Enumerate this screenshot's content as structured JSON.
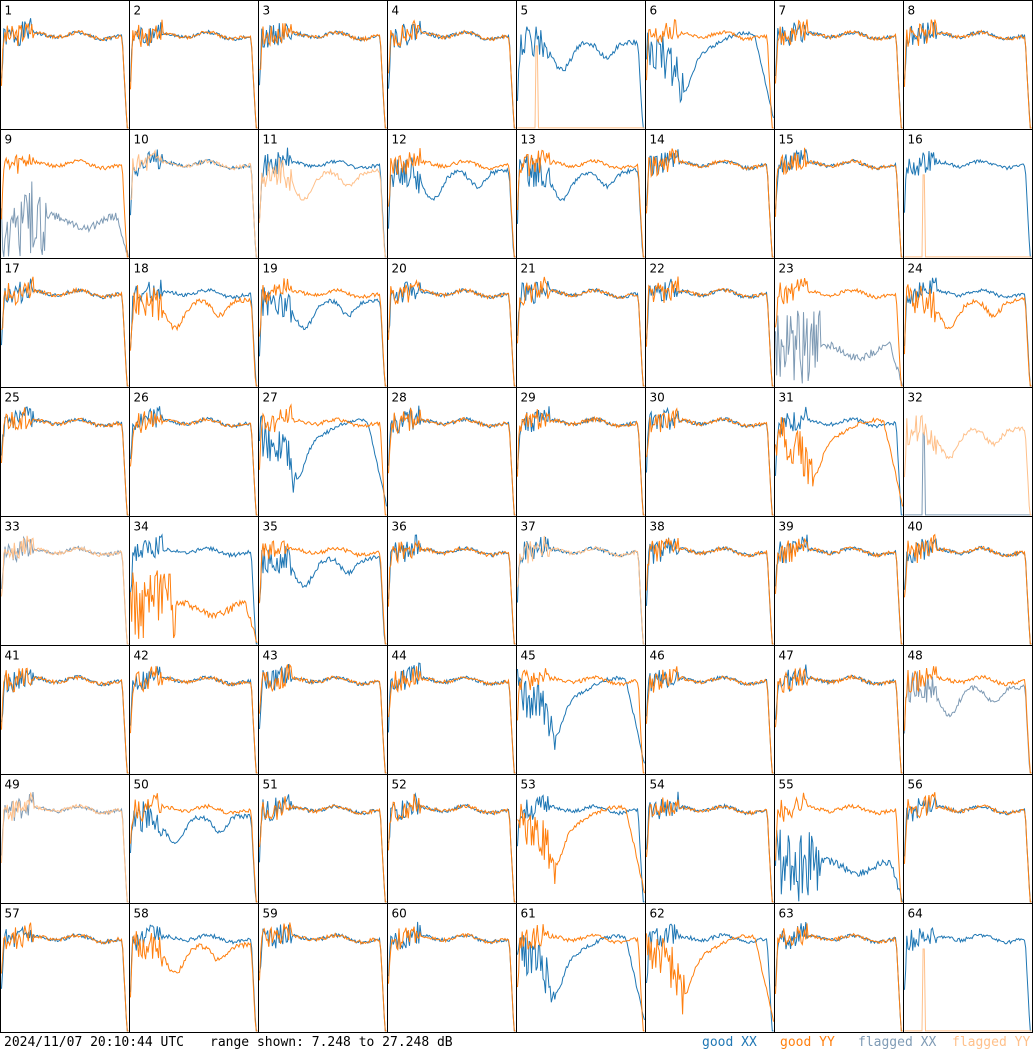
{
  "footer": {
    "timestamp": "2024/11/07 20:10:44 UTC",
    "range": "range shown: 7.248 to 27.248 dB",
    "legend_good_xx": "good XX",
    "legend_good_yy": "good YY",
    "legend_flagged_xx": "flagged XX",
    "legend_flagged_yy": "flagged YY"
  },
  "colors": {
    "good_xx": "#1f77b4",
    "good_yy": "#ff7f0e",
    "flagged_xx": "#7f9bb5",
    "flagged_yy": "#ffc08a"
  },
  "chart_data": {
    "type": "line",
    "layout": "8x8 small multiples",
    "y_range_db": [
      7.248,
      27.248
    ],
    "series_names": [
      "good XX",
      "good YY",
      "flagged XX",
      "flagged YY"
    ],
    "panels": [
      {
        "label": "1",
        "xx": "good",
        "yy": "good",
        "xx_shape": "normal",
        "yy_shape": "normal"
      },
      {
        "label": "2",
        "xx": "good",
        "yy": "good",
        "xx_shape": "normal",
        "yy_shape": "normal"
      },
      {
        "label": "3",
        "xx": "good",
        "yy": "good",
        "xx_shape": "normal",
        "yy_shape": "normal"
      },
      {
        "label": "4",
        "xx": "good",
        "yy": "good",
        "xx_shape": "normal",
        "yy_shape": "normal"
      },
      {
        "label": "5",
        "xx": "good",
        "yy": "flagged",
        "xx_shape": "dip",
        "yy_shape": "floor"
      },
      {
        "label": "6",
        "xx": "good",
        "yy": "good",
        "xx_shape": "drop",
        "yy_shape": "normal"
      },
      {
        "label": "7",
        "xx": "good",
        "yy": "good",
        "xx_shape": "normal",
        "yy_shape": "normal"
      },
      {
        "label": "8",
        "xx": "good",
        "yy": "good",
        "xx_shape": "normal",
        "yy_shape": "normal"
      },
      {
        "label": "9",
        "xx": "flagged",
        "yy": "good",
        "xx_shape": "low",
        "yy_shape": "normal"
      },
      {
        "label": "10",
        "xx": "good",
        "yy": "flagged",
        "xx_shape": "normal",
        "yy_shape": "normal"
      },
      {
        "label": "11",
        "xx": "good",
        "yy": "flagged",
        "xx_shape": "normal",
        "yy_shape": "dip"
      },
      {
        "label": "12",
        "xx": "good",
        "yy": "good",
        "xx_shape": "dip",
        "yy_shape": "normal"
      },
      {
        "label": "13",
        "xx": "good",
        "yy": "good",
        "xx_shape": "dip",
        "yy_shape": "normal"
      },
      {
        "label": "14",
        "xx": "good",
        "yy": "good",
        "xx_shape": "normal",
        "yy_shape": "normal"
      },
      {
        "label": "15",
        "xx": "good",
        "yy": "good",
        "xx_shape": "normal",
        "yy_shape": "normal"
      },
      {
        "label": "16",
        "xx": "good",
        "yy": "flagged",
        "xx_shape": "normal",
        "yy_shape": "floor"
      },
      {
        "label": "17",
        "xx": "good",
        "yy": "good",
        "xx_shape": "normal",
        "yy_shape": "normal"
      },
      {
        "label": "18",
        "xx": "good",
        "yy": "good",
        "xx_shape": "normal",
        "yy_shape": "dip"
      },
      {
        "label": "19",
        "xx": "good",
        "yy": "good",
        "xx_shape": "dip",
        "yy_shape": "normal"
      },
      {
        "label": "20",
        "xx": "good",
        "yy": "good",
        "xx_shape": "normal",
        "yy_shape": "normal"
      },
      {
        "label": "21",
        "xx": "good",
        "yy": "good",
        "xx_shape": "normal",
        "yy_shape": "normal"
      },
      {
        "label": "22",
        "xx": "good",
        "yy": "good",
        "xx_shape": "normal",
        "yy_shape": "normal"
      },
      {
        "label": "23",
        "xx": "flagged",
        "yy": "good",
        "xx_shape": "low",
        "yy_shape": "normal"
      },
      {
        "label": "24",
        "xx": "good",
        "yy": "good",
        "xx_shape": "normal",
        "yy_shape": "dip"
      },
      {
        "label": "25",
        "xx": "good",
        "yy": "good",
        "xx_shape": "normal",
        "yy_shape": "normal"
      },
      {
        "label": "26",
        "xx": "good",
        "yy": "good",
        "xx_shape": "normal",
        "yy_shape": "normal"
      },
      {
        "label": "27",
        "xx": "good",
        "yy": "good",
        "xx_shape": "drop",
        "yy_shape": "normal"
      },
      {
        "label": "28",
        "xx": "good",
        "yy": "good",
        "xx_shape": "normal",
        "yy_shape": "normal"
      },
      {
        "label": "29",
        "xx": "good",
        "yy": "good",
        "xx_shape": "normal",
        "yy_shape": "normal"
      },
      {
        "label": "30",
        "xx": "good",
        "yy": "good",
        "xx_shape": "normal",
        "yy_shape": "normal"
      },
      {
        "label": "31",
        "xx": "good",
        "yy": "good",
        "xx_shape": "normal",
        "yy_shape": "drop"
      },
      {
        "label": "32",
        "xx": "flagged",
        "yy": "flagged",
        "xx_shape": "floor",
        "yy_shape": "dip"
      },
      {
        "label": "33",
        "xx": "flagged",
        "yy": "flagged",
        "xx_shape": "normal",
        "yy_shape": "normal"
      },
      {
        "label": "34",
        "xx": "good",
        "yy": "good",
        "xx_shape": "normal",
        "yy_shape": "low"
      },
      {
        "label": "35",
        "xx": "good",
        "yy": "good",
        "xx_shape": "dip",
        "yy_shape": "normal"
      },
      {
        "label": "36",
        "xx": "good",
        "yy": "good",
        "xx_shape": "normal",
        "yy_shape": "normal"
      },
      {
        "label": "37",
        "xx": "good",
        "yy": "flagged",
        "xx_shape": "normal",
        "yy_shape": "normal"
      },
      {
        "label": "38",
        "xx": "good",
        "yy": "good",
        "xx_shape": "normal",
        "yy_shape": "normal"
      },
      {
        "label": "39",
        "xx": "good",
        "yy": "good",
        "xx_shape": "normal",
        "yy_shape": "normal"
      },
      {
        "label": "40",
        "xx": "good",
        "yy": "good",
        "xx_shape": "normal",
        "yy_shape": "normal"
      },
      {
        "label": "41",
        "xx": "good",
        "yy": "good",
        "xx_shape": "normal",
        "yy_shape": "normal"
      },
      {
        "label": "42",
        "xx": "good",
        "yy": "good",
        "xx_shape": "normal",
        "yy_shape": "normal"
      },
      {
        "label": "43",
        "xx": "good",
        "yy": "good",
        "xx_shape": "normal",
        "yy_shape": "normal"
      },
      {
        "label": "44",
        "xx": "good",
        "yy": "good",
        "xx_shape": "normal",
        "yy_shape": "normal"
      },
      {
        "label": "45",
        "xx": "good",
        "yy": "good",
        "xx_shape": "drop",
        "yy_shape": "normal"
      },
      {
        "label": "46",
        "xx": "good",
        "yy": "good",
        "xx_shape": "normal",
        "yy_shape": "normal"
      },
      {
        "label": "47",
        "xx": "good",
        "yy": "good",
        "xx_shape": "normal",
        "yy_shape": "normal"
      },
      {
        "label": "48",
        "xx": "flagged",
        "yy": "good",
        "xx_shape": "dip",
        "yy_shape": "normal"
      },
      {
        "label": "49",
        "xx": "flagged",
        "yy": "flagged",
        "xx_shape": "normal",
        "yy_shape": "normal"
      },
      {
        "label": "50",
        "xx": "good",
        "yy": "good",
        "xx_shape": "dip",
        "yy_shape": "normal"
      },
      {
        "label": "51",
        "xx": "good",
        "yy": "good",
        "xx_shape": "normal",
        "yy_shape": "normal"
      },
      {
        "label": "52",
        "xx": "good",
        "yy": "good",
        "xx_shape": "normal",
        "yy_shape": "normal"
      },
      {
        "label": "53",
        "xx": "good",
        "yy": "good",
        "xx_shape": "normal",
        "yy_shape": "drop"
      },
      {
        "label": "54",
        "xx": "good",
        "yy": "good",
        "xx_shape": "normal",
        "yy_shape": "normal"
      },
      {
        "label": "55",
        "xx": "good",
        "yy": "good",
        "xx_shape": "low",
        "yy_shape": "normal"
      },
      {
        "label": "56",
        "xx": "good",
        "yy": "good",
        "xx_shape": "normal",
        "yy_shape": "normal"
      },
      {
        "label": "57",
        "xx": "good",
        "yy": "good",
        "xx_shape": "normal",
        "yy_shape": "normal"
      },
      {
        "label": "58",
        "xx": "good",
        "yy": "good",
        "xx_shape": "normal",
        "yy_shape": "dip"
      },
      {
        "label": "59",
        "xx": "good",
        "yy": "good",
        "xx_shape": "normal",
        "yy_shape": "normal"
      },
      {
        "label": "60",
        "xx": "good",
        "yy": "good",
        "xx_shape": "normal",
        "yy_shape": "normal"
      },
      {
        "label": "61",
        "xx": "good",
        "yy": "good",
        "xx_shape": "drop",
        "yy_shape": "normal"
      },
      {
        "label": "62",
        "xx": "good",
        "yy": "good",
        "xx_shape": "normal",
        "yy_shape": "drop"
      },
      {
        "label": "63",
        "xx": "good",
        "yy": "good",
        "xx_shape": "normal",
        "yy_shape": "normal"
      },
      {
        "label": "64",
        "xx": "good",
        "yy": "flagged",
        "xx_shape": "normal",
        "yy_shape": "floor"
      }
    ]
  }
}
